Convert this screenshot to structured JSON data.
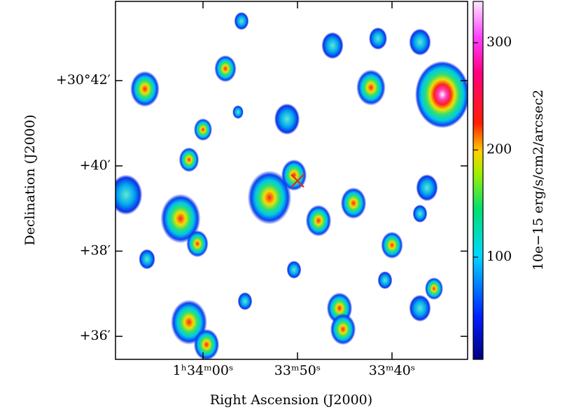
{
  "chart_data": {
    "type": "image",
    "xlabel": "Right Ascension (J2000)",
    "ylabel": "Declination (J2000)",
    "colorbar_label": "10e−15 erg/s/cm2/arcsec2",
    "xlim": [
      69.26,
      32.0
    ],
    "xticks": [
      {
        "value": 60,
        "label": "1ʰ34ᵐ00ˢ"
      },
      {
        "value": 50,
        "label": "33ᵐ50ˢ"
      },
      {
        "value": 40,
        "label": "33ᵐ40ˢ"
      }
    ],
    "ylim": [
      35.46,
      43.86
    ],
    "yticks": [
      {
        "value": 36,
        "label": "+36′"
      },
      {
        "value": 38,
        "label": "+38′"
      },
      {
        "value": 40,
        "label": "+40′"
      },
      {
        "value": 42,
        "label": "+30°42′"
      }
    ],
    "clim": [
      4.6,
      338.6
    ],
    "cticks": [
      100,
      200,
      300
    ],
    "marker": {
      "x": 50.0,
      "y": 39.65,
      "color": "#e8281e"
    }
  }
}
